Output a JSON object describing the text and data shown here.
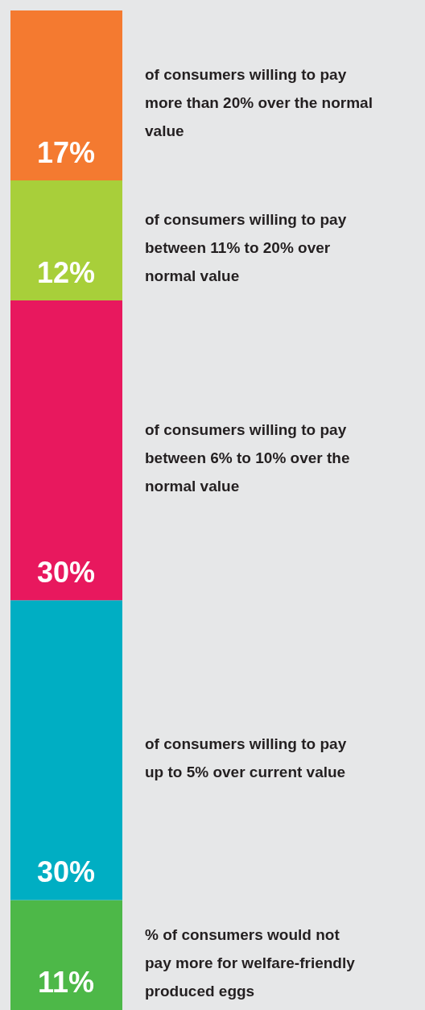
{
  "chart_data": {
    "type": "bar",
    "stacked": true,
    "relative": false,
    "categories": [
      null
    ],
    "ylim": [
      0,
      100
    ],
    "tick_labels": false,
    "series": [
      {
        "name": "% of consumers would not\npay more for welfare-friendly\nproduced eggs",
        "color": "#4db848",
        "values": [
          11
        ],
        "value_labels": [
          "11%"
        ]
      },
      {
        "name": "of consumers willing to pay\nup to 5% over current value",
        "color": "#00aec3",
        "values": [
          30
        ],
        "value_labels": [
          "30%"
        ]
      },
      {
        "name": "of consumers willing to pay\nbetween 6% to 10% over the\nnormal value",
        "color": "#e8185e",
        "values": [
          30
        ],
        "value_labels": [
          "30%"
        ]
      },
      {
        "name": "of consumers willing to pay\nbetween 11% to 20% over\nnormal value",
        "color": "#a8cf3a",
        "values": [
          12
        ],
        "value_labels": [
          "12%"
        ]
      },
      {
        "name": "of consumers willing to pay\nmore than 20% over the normal\nvalue",
        "color": "#f47a30",
        "values": [
          17
        ],
        "value_labels": [
          "17%"
        ]
      }
    ]
  }
}
